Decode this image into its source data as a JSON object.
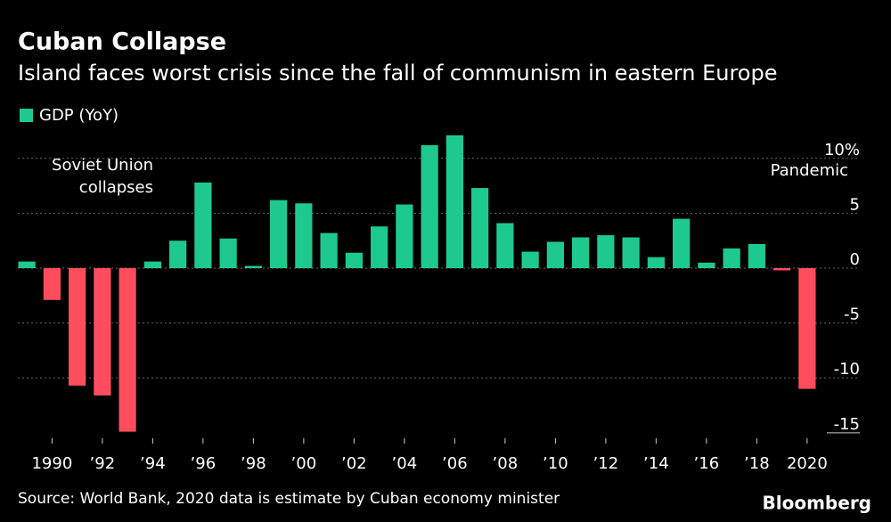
{
  "chart_data": {
    "type": "bar",
    "title": "Cuban Collapse",
    "subtitle": "Island faces worst crisis since the fall of communism in eastern Europe",
    "series": [
      {
        "name": "GDP (YoY)",
        "color": "#1ec98f",
        "negative_color": "#ff4d5e",
        "values": [
          0.6,
          -2.9,
          -10.7,
          -11.6,
          -14.9,
          0.6,
          2.5,
          7.8,
          2.7,
          0.2,
          6.2,
          5.9,
          3.2,
          1.4,
          3.8,
          5.8,
          11.2,
          12.1,
          7.3,
          4.1,
          1.5,
          2.4,
          2.8,
          3.0,
          2.8,
          1.0,
          4.5,
          0.5,
          1.8,
          2.2,
          -0.2,
          -11.0
        ]
      }
    ],
    "categories": [
      null,
      "1990",
      null,
      "’92",
      null,
      "’94",
      null,
      "’96",
      null,
      "’98",
      null,
      "’00",
      null,
      "’02",
      null,
      "’04",
      null,
      "’06",
      null,
      "’08",
      null,
      "’10",
      null,
      "’12",
      null,
      "’14",
      null,
      "’16",
      null,
      "’18",
      null,
      "2020"
    ],
    "ylim": [
      -15.5,
      12.5
    ],
    "yticks": [
      {
        "value": 10,
        "label": "10%"
      },
      5,
      0,
      -5,
      -10,
      -15
    ],
    "grid": true,
    "annotations": [
      {
        "text": [
          "Soviet Union",
          "collapses"
        ]
      },
      {
        "text": [
          "Pandemic"
        ]
      }
    ],
    "source": "Source: World Bank, 2020 data is estimate by Cuban economy minister",
    "brand": "Bloomberg"
  }
}
